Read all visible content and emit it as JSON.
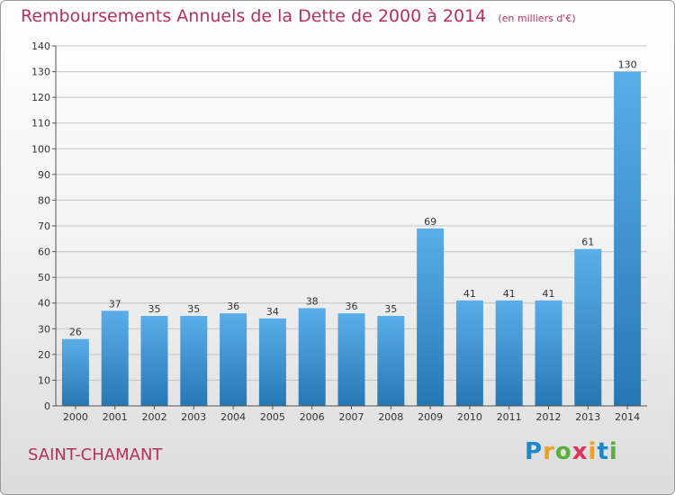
{
  "title": "Remboursements Annuels de la Dette de 2000 à 2014",
  "unit": "(en milliers d'€)",
  "place": "SAINT-CHAMANT",
  "logo": {
    "text": "Proxiti",
    "letters": [
      "P",
      "r",
      "o",
      "x",
      "i",
      "t",
      "i"
    ],
    "letter_colors": [
      "#1e88c8",
      "#f0a020",
      "#5ab03c",
      "#e0305a",
      "#f0a020",
      "#1e88c8",
      "#5ab03c"
    ]
  },
  "colors": {
    "title": "#b5305a",
    "bar_light": "#5aaee8",
    "bar_dark": "#2678b4",
    "grid": "#c4c4c4"
  },
  "chart_data": {
    "type": "bar",
    "title": "Remboursements Annuels de la Dette de 2000 à 2014",
    "categories": [
      "2000",
      "2001",
      "2002",
      "2003",
      "2004",
      "2005",
      "2006",
      "2007",
      "2008",
      "2009",
      "2010",
      "2011",
      "2012",
      "2013",
      "2014"
    ],
    "values": [
      26,
      37,
      35,
      35,
      36,
      34,
      38,
      36,
      35,
      69,
      41,
      41,
      41,
      61,
      130
    ],
    "ylim": [
      0,
      140
    ],
    "yticks": [
      0,
      10,
      20,
      30,
      40,
      50,
      60,
      70,
      80,
      90,
      100,
      110,
      120,
      130,
      140
    ],
    "grid": true,
    "data_labels": true
  }
}
